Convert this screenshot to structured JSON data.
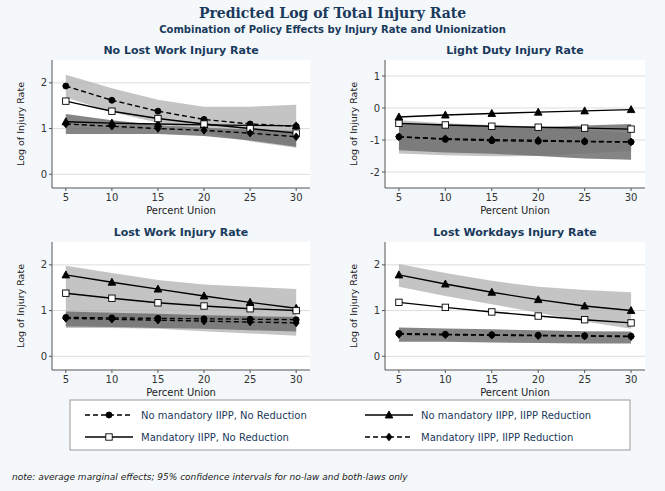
{
  "title": "Predicted Log of Total Injury Rate",
  "subtitle": "Combination of Policy Effects by Injury Rate and Unionization",
  "annotations": [
    "note: average marginal effects; 95% confidence intervals for no-law and both-laws only"
  ],
  "chart_data": [
    {
      "type": "line",
      "title": "No Lost Work Injury Rate",
      "x_label": "Percent Union",
      "y_label": "Log of Injury Rate",
      "x": [
        5,
        10,
        15,
        20,
        25,
        30
      ],
      "xlim": [
        3.5,
        31.5
      ],
      "xticks": [
        5,
        10,
        15,
        20,
        25,
        30
      ],
      "ylim": [
        -0.3,
        2.5
      ],
      "yticks": [
        0,
        1,
        2
      ],
      "grid": true,
      "legend": "bottom",
      "series": [
        {
          "name": "No mandatory IIPP, No Reduction",
          "color": "#000000",
          "marker": "circle",
          "line_style": "dashed",
          "values": [
            1.93,
            1.62,
            1.38,
            1.2,
            1.1,
            1.05
          ]
        },
        {
          "name": "No mandatory IIPP, IIPP Reduction",
          "color": "#000000",
          "marker": "triangle",
          "line_style": "solid",
          "values": [
            1.15,
            1.12,
            1.1,
            1.08,
            1.07,
            1.06
          ]
        },
        {
          "name": "Mandatory IIPP, No Reduction",
          "color": "#000000",
          "marker": "square_open",
          "line_style": "solid",
          "values": [
            1.6,
            1.38,
            1.22,
            1.1,
            1.0,
            0.9
          ]
        },
        {
          "name": "Mandatory IIPP, IIPP Reduction",
          "color": "#000000",
          "marker": "diamond",
          "line_style": "dashed",
          "values": [
            1.1,
            1.05,
            1.0,
            0.96,
            0.9,
            0.82
          ]
        }
      ],
      "ci_no_law": {
        "color": "#b0b0b0",
        "upper": [
          2.18,
          1.88,
          1.63,
          1.48,
          1.48,
          1.52
        ],
        "lower": [
          1.68,
          1.36,
          1.13,
          0.92,
          0.72,
          0.58
        ]
      },
      "ci_both": {
        "color": "#707070",
        "upper": [
          1.32,
          1.18,
          1.08,
          1.02,
          0.98,
          0.95
        ],
        "lower": [
          0.88,
          0.88,
          0.88,
          0.84,
          0.74,
          0.6
        ]
      }
    },
    {
      "type": "line",
      "title": "Light Duty Injury Rate",
      "x_label": "Percent Union",
      "y_label": "Log of Injury Rate",
      "x": [
        5,
        10,
        15,
        20,
        25,
        30
      ],
      "xlim": [
        3.5,
        31.5
      ],
      "xticks": [
        5,
        10,
        15,
        20,
        25,
        30
      ],
      "ylim": [
        -2.5,
        1.5
      ],
      "yticks": [
        -2,
        -1,
        0,
        1
      ],
      "grid": true,
      "legend": "bottom",
      "series": [
        {
          "name": "No mandatory IIPP, No Reduction",
          "color": "#000000",
          "marker": "circle",
          "line_style": "dashed",
          "values": [
            -0.9,
            -0.98,
            -1.02,
            -1.04,
            -1.05,
            -1.06
          ]
        },
        {
          "name": "No mandatory IIPP, IIPP Reduction",
          "color": "#000000",
          "marker": "triangle",
          "line_style": "solid",
          "values": [
            -0.28,
            -0.22,
            -0.17,
            -0.13,
            -0.09,
            -0.05
          ]
        },
        {
          "name": "Mandatory IIPP, No Reduction",
          "color": "#000000",
          "marker": "square_open",
          "line_style": "solid",
          "values": [
            -0.48,
            -0.53,
            -0.57,
            -0.6,
            -0.63,
            -0.66
          ]
        },
        {
          "name": "Mandatory IIPP, IIPP Reduction",
          "color": "#000000",
          "marker": "diamond",
          "line_style": "dashed",
          "values": [
            -0.9,
            -0.96,
            -0.99,
            -1.01,
            -1.04,
            -1.06
          ]
        }
      ],
      "ci_no_law": {
        "color": "#b0b0b0",
        "upper": [
          -0.38,
          -0.48,
          -0.53,
          -0.58,
          -0.68,
          -0.78
        ],
        "lower": [
          -1.42,
          -1.48,
          -1.51,
          -1.5,
          -1.42,
          -1.34
        ]
      },
      "ci_both": {
        "color": "#707070",
        "upper": [
          -0.48,
          -0.53,
          -0.58,
          -0.6,
          -0.55,
          -0.5
        ],
        "lower": [
          -1.32,
          -1.39,
          -1.43,
          -1.5,
          -1.58,
          -1.62
        ]
      }
    },
    {
      "type": "line",
      "title": "Lost Work Injury Rate",
      "x_label": "Percent Union",
      "y_label": "Log of Injury Rate",
      "x": [
        5,
        10,
        15,
        20,
        25,
        30
      ],
      "xlim": [
        3.5,
        31.5
      ],
      "xticks": [
        5,
        10,
        15,
        20,
        25,
        30
      ],
      "ylim": [
        -0.3,
        2.5
      ],
      "yticks": [
        0,
        1,
        2
      ],
      "grid": true,
      "legend": "bottom",
      "series": [
        {
          "name": "No mandatory IIPP, No Reduction",
          "color": "#000000",
          "marker": "circle",
          "line_style": "dashed",
          "values": [
            0.85,
            0.84,
            0.83,
            0.82,
            0.81,
            0.8
          ]
        },
        {
          "name": "No mandatory IIPP, IIPP Reduction",
          "color": "#000000",
          "marker": "triangle",
          "line_style": "solid",
          "values": [
            1.78,
            1.62,
            1.47,
            1.32,
            1.18,
            1.05
          ]
        },
        {
          "name": "Mandatory IIPP, No Reduction",
          "color": "#000000",
          "marker": "square_open",
          "line_style": "solid",
          "values": [
            1.38,
            1.27,
            1.17,
            1.1,
            1.04,
            1.0
          ]
        },
        {
          "name": "Mandatory IIPP, IIPP Reduction",
          "color": "#000000",
          "marker": "diamond",
          "line_style": "dashed",
          "values": [
            0.83,
            0.81,
            0.79,
            0.77,
            0.75,
            0.73
          ]
        }
      ],
      "ci_no_law": {
        "color": "#b0b0b0",
        "upper": [
          1.98,
          1.82,
          1.67,
          1.57,
          1.52,
          1.47
        ],
        "lower": [
          0.62,
          0.62,
          0.6,
          0.55,
          0.5,
          0.45
        ]
      },
      "ci_both": {
        "color": "#707070",
        "upper": [
          0.98,
          0.95,
          0.93,
          0.9,
          0.88,
          0.86
        ],
        "lower": [
          0.65,
          0.64,
          0.62,
          0.6,
          0.57,
          0.54
        ]
      }
    },
    {
      "type": "line",
      "title": "Lost Workdays Injury Rate",
      "x_label": "Percent Union",
      "y_label": "Log of Injury Rate",
      "x": [
        5,
        10,
        15,
        20,
        25,
        30
      ],
      "xlim": [
        3.5,
        31.5
      ],
      "xticks": [
        5,
        10,
        15,
        20,
        25,
        30
      ],
      "ylim": [
        -0.3,
        2.5
      ],
      "yticks": [
        0,
        1,
        2
      ],
      "grid": true,
      "legend": "bottom",
      "series": [
        {
          "name": "No mandatory IIPP, No Reduction",
          "color": "#000000",
          "marker": "circle",
          "line_style": "dashed",
          "values": [
            0.5,
            0.48,
            0.47,
            0.46,
            0.45,
            0.44
          ]
        },
        {
          "name": "No mandatory IIPP, IIPP Reduction",
          "color": "#000000",
          "marker": "triangle",
          "line_style": "solid",
          "values": [
            1.78,
            1.58,
            1.4,
            1.24,
            1.1,
            1.0
          ]
        },
        {
          "name": "Mandatory IIPP, No Reduction",
          "color": "#000000",
          "marker": "square_open",
          "line_style": "solid",
          "values": [
            1.18,
            1.07,
            0.97,
            0.88,
            0.8,
            0.73
          ]
        },
        {
          "name": "Mandatory IIPP, IIPP Reduction",
          "color": "#000000",
          "marker": "diamond",
          "line_style": "dashed",
          "values": [
            0.48,
            0.47,
            0.46,
            0.45,
            0.44,
            0.43
          ]
        }
      ],
      "ci_no_law": {
        "color": "#b0b0b0",
        "upper": [
          2.02,
          1.82,
          1.65,
          1.52,
          1.45,
          1.4
        ],
        "lower": [
          1.52,
          1.32,
          1.14,
          0.95,
          0.76,
          0.6
        ]
      },
      "ci_both": {
        "color": "#707070",
        "upper": [
          0.63,
          0.61,
          0.59,
          0.57,
          0.55,
          0.54
        ],
        "lower": [
          0.32,
          0.32,
          0.3,
          0.29,
          0.28,
          0.28
        ]
      }
    }
  ]
}
